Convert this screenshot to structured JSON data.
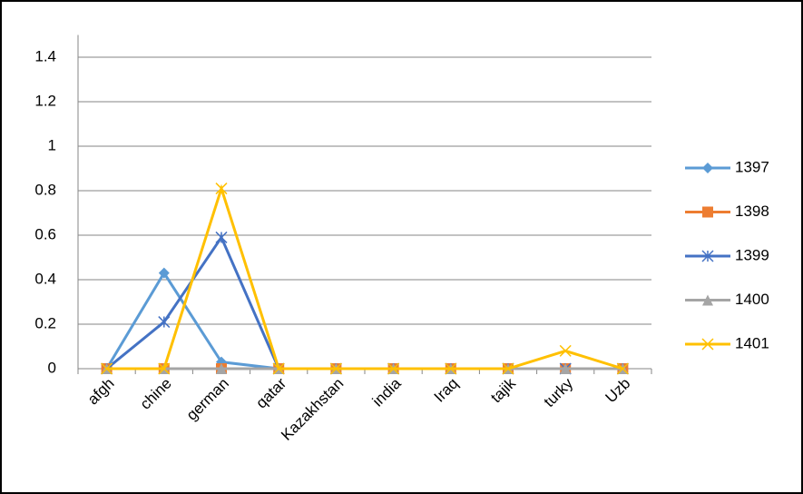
{
  "chart_data": {
    "type": "line",
    "categories": [
      "afgh",
      "chine",
      "german",
      "qatar",
      "Kazakhstan",
      "india",
      "Iraq",
      "tajik",
      "turky",
      "Uzb"
    ],
    "series": [
      {
        "name": "1397",
        "color": "#5b9bd5",
        "marker": "diamond",
        "values": [
          0,
          0.43,
          0.03,
          0,
          0,
          0,
          0,
          0,
          0,
          0
        ]
      },
      {
        "name": "1398",
        "color": "#ed7d31",
        "marker": "square",
        "values": [
          0,
          0,
          0,
          0,
          0,
          0,
          0,
          0,
          0,
          0
        ]
      },
      {
        "name": "1399",
        "color": "#4472c4",
        "marker": "asterisk",
        "values": [
          0,
          0.21,
          0.59,
          0,
          0,
          0,
          0,
          0,
          0,
          0
        ]
      },
      {
        "name": "1400",
        "color": "#a5a5a5",
        "marker": "triangle",
        "values": [
          0,
          0,
          0,
          0,
          0,
          0,
          0,
          0,
          0,
          0
        ]
      },
      {
        "name": "1401",
        "color": "#ffc000",
        "marker": "x",
        "values": [
          0,
          0,
          0.81,
          0,
          0,
          0,
          0,
          0,
          0.08,
          0
        ]
      }
    ],
    "ylim": [
      0,
      1.5
    ],
    "yticks": [
      0,
      0.2,
      0.4,
      0.6,
      0.8,
      1,
      1.2,
      1.4
    ],
    "grid": true,
    "legend": "right"
  }
}
